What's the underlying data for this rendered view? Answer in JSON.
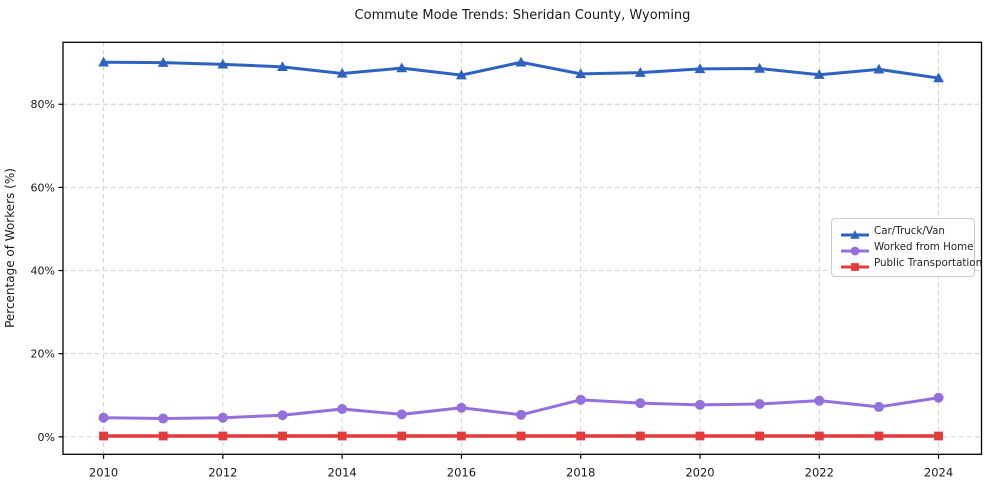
{
  "chart_data": {
    "type": "line",
    "title": "Commute Mode Trends: Sheridan County, Wyoming",
    "xlabel": "",
    "ylabel": "Percentage of Workers (%)",
    "x": [
      2010,
      2011,
      2012,
      2013,
      2014,
      2015,
      2016,
      2017,
      2018,
      2019,
      2020,
      2021,
      2022,
      2023,
      2024
    ],
    "xticks": [
      2010,
      2012,
      2014,
      2016,
      2018,
      2020,
      2022,
      2024
    ],
    "yticks": [
      0,
      20,
      40,
      60,
      80
    ],
    "ytick_labels": [
      "0%",
      "20%",
      "40%",
      "60%",
      "80%"
    ],
    "xlim": [
      2009.32,
      2024.72
    ],
    "ylim": [
      -4.2,
      94.9
    ],
    "grid": true,
    "grid_style": "dashed",
    "grid_color": "#cccccc",
    "legend_position": "center-right",
    "text_color": "#1a1a1a",
    "spine_color": "#000000",
    "series": [
      {
        "name": "Car/Truck/Van",
        "color": "#2d63bf",
        "marker": "triangle-up",
        "line_width": 3,
        "values": [
          90.1,
          90.0,
          89.6,
          89.0,
          87.4,
          88.7,
          87.0,
          90.1,
          87.3,
          87.6,
          88.5,
          88.6,
          87.1,
          88.4,
          86.3
        ]
      },
      {
        "name": "Worked from Home",
        "color": "#9370db",
        "marker": "circle",
        "line_width": 3,
        "values": [
          4.6,
          4.4,
          4.6,
          5.2,
          6.7,
          5.4,
          7.0,
          5.3,
          8.9,
          8.1,
          7.7,
          7.9,
          8.7,
          7.2,
          9.4
        ]
      },
      {
        "name": "Public Transportation",
        "color": "#e23b3b",
        "marker": "square",
        "line_width": 3.6,
        "values": [
          0.2,
          0.2,
          0.2,
          0.2,
          0.2,
          0.2,
          0.2,
          0.2,
          0.2,
          0.2,
          0.2,
          0.2,
          0.2,
          0.2,
          0.2
        ]
      }
    ]
  }
}
